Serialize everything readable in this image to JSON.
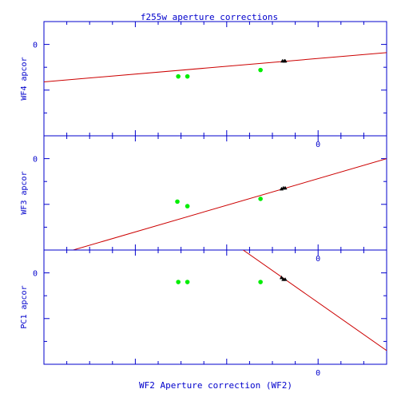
{
  "chart_data": {
    "type": "scatter",
    "title": "f255w aperture corrections",
    "xlabel": "WF2 Aperture correction (WF2)",
    "x_tick_labels": [
      "0"
    ],
    "xlim": [
      -0.3,
      0.075
    ],
    "colors": {
      "frame": "#0000cc",
      "line": "#cc0000",
      "green": "#00ee00",
      "black": "#000000"
    },
    "panels": [
      {
        "ylabel": "WF4 apcor",
        "y_tick_labels": [
          "0"
        ],
        "ylim": [
          -0.1,
          0.025
        ],
        "green_points": [
          [
            -0.153,
            -0.035
          ],
          [
            -0.143,
            -0.035
          ],
          [
            -0.063,
            -0.028
          ]
        ],
        "black_points": [
          [
            -0.039,
            -0.018
          ],
          [
            -0.037,
            -0.018
          ],
          [
            -0.036,
            -0.018
          ]
        ],
        "fit_line": [
          [
            -0.3,
            -0.041
          ],
          [
            0.075,
            -0.009
          ]
        ]
      },
      {
        "ylabel": "WF3 apcor",
        "y_tick_labels": [
          "0"
        ],
        "ylim": [
          -0.1,
          0.025
        ],
        "green_points": [
          [
            -0.154,
            -0.047
          ],
          [
            -0.143,
            -0.052
          ],
          [
            -0.063,
            -0.044
          ]
        ],
        "black_points": [
          [
            -0.04,
            -0.033
          ],
          [
            -0.038,
            -0.032
          ],
          [
            -0.036,
            -0.032
          ]
        ],
        "fit_line": [
          [
            -0.268,
            -0.1
          ],
          [
            0.075,
            0.0
          ]
        ]
      },
      {
        "ylabel": "PC1 apcor",
        "y_tick_labels": [
          "0"
        ],
        "ylim": [
          -0.1,
          0.025
        ],
        "green_points": [
          [
            -0.153,
            -0.01
          ],
          [
            -0.143,
            -0.01
          ],
          [
            -0.063,
            -0.01
          ]
        ],
        "black_points": [
          [
            -0.04,
            -0.005
          ],
          [
            -0.038,
            -0.007
          ],
          [
            -0.036,
            -0.007
          ]
        ],
        "fit_line": [
          [
            -0.082,
            0.025
          ],
          [
            0.075,
            -0.085
          ]
        ]
      }
    ]
  }
}
